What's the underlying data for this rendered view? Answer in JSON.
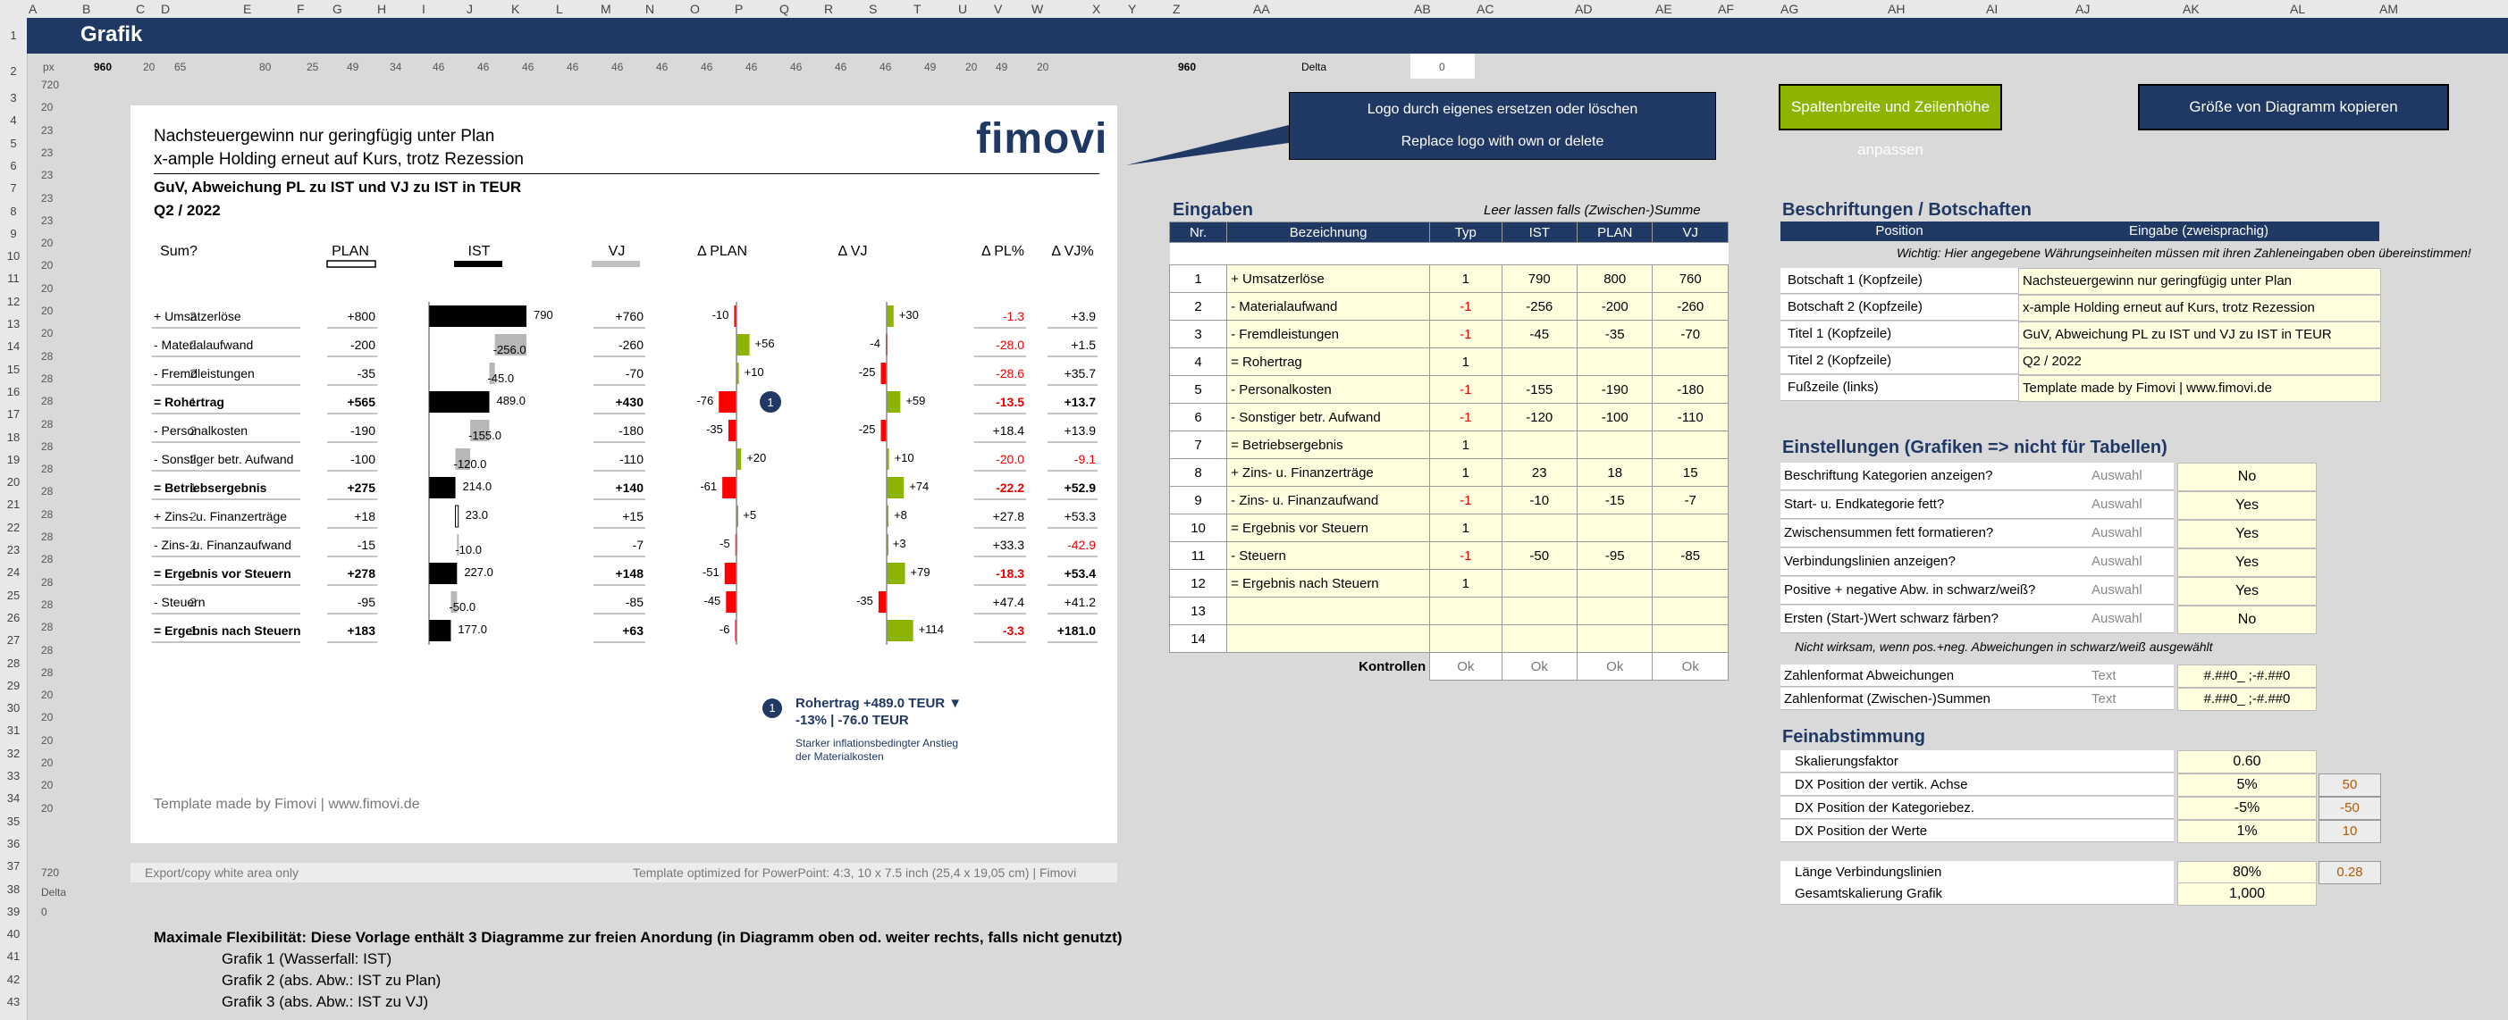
{
  "sheet": {
    "title": "Grafik",
    "columns": [
      "A",
      "B",
      "C",
      "D",
      "E",
      "F",
      "G",
      "H",
      "I",
      "J",
      "K",
      "L",
      "M",
      "N",
      "O",
      "P",
      "Q",
      "R",
      "S",
      "T",
      "U",
      "V",
      "W",
      "X",
      "Y",
      "Z",
      "AA",
      "AB",
      "AC",
      "AD",
      "AE",
      "AF",
      "AG",
      "AH",
      "AI",
      "AJ",
      "AK",
      "AL",
      "AM"
    ],
    "rows": [
      "1",
      "2",
      "3",
      "4",
      "5",
      "6",
      "7",
      "8",
      "9",
      "10",
      "11",
      "12",
      "13",
      "14",
      "15",
      "16",
      "17",
      "18",
      "19",
      "20",
      "21",
      "22",
      "23",
      "24",
      "25",
      "26",
      "27",
      "28",
      "29",
      "30",
      "31",
      "32",
      "33",
      "34",
      "35",
      "36",
      "37",
      "38",
      "39",
      "40",
      "41",
      "42",
      "43"
    ],
    "row2": {
      "px_label": "px",
      "px_value": "960",
      "widths": [
        "20",
        "65",
        "80",
        "25",
        "49",
        "34",
        "46",
        "46",
        "46",
        "46",
        "46",
        "46",
        "46",
        "46",
        "46",
        "46",
        "46",
        "49",
        "20",
        "49",
        "20"
      ],
      "z_value": "960",
      "delta_label": "Delta",
      "delta_value": "0"
    },
    "row_small_numbers": {
      "r3": "720",
      "r4": "20",
      "r5": "23",
      "r6": "23",
      "r7": "23",
      "r8": "23",
      "r9": "23",
      "r10": "20",
      "r11": "20",
      "r12": "20",
      "r13": "20",
      "r14": "20",
      "r15": "28",
      "r16": "28",
      "r17": "28",
      "r18": "28",
      "r19": "28",
      "r20": "28",
      "r21": "28",
      "r22": "28",
      "r23": "28",
      "r24": "28",
      "r25": "28",
      "r26": "28",
      "r27": "28",
      "r28": "28",
      "r29": "28",
      "r30": "20",
      "r31": "20",
      "r32": "20",
      "r33": "20",
      "r34": "20",
      "r35": "20",
      "r37": "720",
      "r38": "Delta",
      "r39": "0"
    }
  },
  "chart": {
    "headline1": "Nachsteuergewinn nur geringfügig unter Plan",
    "headline2": "x-ample Holding erneut auf Kurs, trotz Rezession",
    "logo": "fimovi",
    "title1": "GuV, Abweichung PL zu IST und VJ zu IST in TEUR",
    "title2": "Q2 / 2022",
    "col_headers": {
      "plan": "PLAN",
      "ist": "IST",
      "vj": "VJ",
      "dplan": "Δ PLAN",
      "dvj": "Δ VJ",
      "dplpct": "Δ PL%",
      "dvjpct": "Δ VJ%",
      "sum": "Sum?"
    },
    "footer": "Template made by Fimovi  |  www.fimovi.de",
    "annotation_badge": "1",
    "annotation_title": "Rohertrag +489.0 TEUR ▼",
    "annotation_sub": "-13% | -76.0 TEUR",
    "annotation_text1": "Starker inflationsbedingter Anstieg",
    "annotation_text2": "der Materialkosten",
    "export_note": "Export/copy white area only",
    "template_note": "Template optimized for PowerPoint: 4:3, 10 x 7.5 inch (25,4 x 19,05 cm)  |  Fimovi"
  },
  "chart_data": {
    "type": "table",
    "categories": [
      "+ Umsatzerlöse",
      "- Materialaufwand",
      "- Fremdleistungen",
      "= Rohertrag",
      "- Personalkosten",
      "- Sonstiger betr. Aufwand",
      "= Betriebsergebnis",
      "+ Zins- u. Finanzerträge",
      "- Zins- u. Finanzaufwand",
      "= Ergebnis vor Steuern",
      "- Steuern",
      "= Ergebnis nach Steuern"
    ],
    "sum_flags": [
      "2",
      "2",
      "2",
      "1",
      "2",
      "2",
      "1",
      "2",
      "2",
      "1",
      "2",
      "1"
    ],
    "plan": [
      "+800",
      "-200",
      "-35",
      "+565",
      "-190",
      "-100",
      "+275",
      "+18",
      "-15",
      "+278",
      "-95",
      "+183"
    ],
    "ist_values": [
      790,
      -256,
      -45,
      489,
      -155,
      -120,
      214,
      23,
      -10,
      227,
      -50,
      177
    ],
    "ist_labels": [
      "790",
      "-256.0",
      "-45.0",
      "489.0",
      "-155.0",
      "-120.0",
      "214.0",
      "23.0",
      "-10.0",
      "227.0",
      "-50.0",
      "177.0"
    ],
    "vj": [
      "+760",
      "-260",
      "-70",
      "+430",
      "-180",
      "-110",
      "+140",
      "+15",
      "-7",
      "+148",
      "-85",
      "+63"
    ],
    "dplan_values": [
      -10,
      56,
      10,
      -76,
      -35,
      20,
      -61,
      5,
      -5,
      -51,
      -45,
      -6
    ],
    "dplan_labels": [
      "-10",
      "+56",
      "+10",
      "-76",
      "-35",
      "+20",
      "-61",
      "+5",
      "-5",
      "-51",
      "-45",
      "-6"
    ],
    "dvj_values": [
      30,
      -4,
      -25,
      59,
      -25,
      10,
      74,
      8,
      3,
      79,
      -35,
      114
    ],
    "dvj_labels": [
      "+30",
      "-4",
      "-25",
      "+59",
      "-25",
      "+10",
      "+74",
      "+8",
      "+3",
      "+79",
      "-35",
      "+114"
    ],
    "dplpct": [
      "-1.3",
      "-28.0",
      "-28.6",
      "-13.5",
      "+18.4",
      "-20.0",
      "-22.2",
      "+27.8",
      "+33.3",
      "-18.3",
      "+47.4",
      "-3.3"
    ],
    "dvjpct": [
      "+3.9",
      "+1.5",
      "+35.7",
      "+13.7",
      "+13.9",
      "-9.1",
      "+52.9",
      "+53.3",
      "-42.9",
      "+53.4",
      "+41.2",
      "+181.0"
    ],
    "bold_rows": [
      3,
      6,
      9,
      11
    ],
    "colors": {
      "ist": "#000000",
      "ist_neg": "#b7b7b7",
      "pos": "#8db400",
      "neg": "#ff0000",
      "vj": "#c0c0c0"
    }
  },
  "callout": {
    "line1": "Logo durch eigenes ersetzen oder löschen",
    "line2": "Replace logo with own or delete"
  },
  "buttons": {
    "adjust": "Spaltenbreite und Zeilenhöhe anpassen",
    "copy": "Größe von Diagramm kopieren"
  },
  "inputs": {
    "title": "Eingaben",
    "note": "Leer lassen falls (Zwischen-)Summe",
    "headers": [
      "Nr.",
      "Bezeichnung",
      "Typ",
      "IST",
      "PLAN",
      "VJ"
    ],
    "rows": [
      [
        "1",
        "+ Umsatzerlöse",
        "1",
        "790",
        "800",
        "760"
      ],
      [
        "2",
        "- Materialaufwand",
        "-1",
        "-256",
        "-200",
        "-260"
      ],
      [
        "3",
        "- Fremdleistungen",
        "-1",
        "-45",
        "-35",
        "-70"
      ],
      [
        "4",
        "= Rohertrag",
        "1",
        "",
        "",
        ""
      ],
      [
        "5",
        "- Personalkosten",
        "-1",
        "-155",
        "-190",
        "-180"
      ],
      [
        "6",
        "- Sonstiger betr. Aufwand",
        "-1",
        "-120",
        "-100",
        "-110"
      ],
      [
        "7",
        "= Betriebsergebnis",
        "1",
        "",
        "",
        ""
      ],
      [
        "8",
        "+ Zins- u. Finanzerträge",
        "1",
        "23",
        "18",
        "15"
      ],
      [
        "9",
        "- Zins- u. Finanzaufwand",
        "-1",
        "-10",
        "-15",
        "-7"
      ],
      [
        "10",
        "= Ergebnis vor Steuern",
        "1",
        "",
        "",
        ""
      ],
      [
        "11",
        "- Steuern",
        "-1",
        "-50",
        "-95",
        "-85"
      ],
      [
        "12",
        "= Ergebnis nach Steuern",
        "1",
        "",
        "",
        ""
      ],
      [
        "13",
        "",
        "",
        "",
        "",
        ""
      ],
      [
        "14",
        "",
        "",
        "",
        "",
        ""
      ]
    ],
    "controls_label": "Kontrollen",
    "controls": [
      "Ok",
      "Ok",
      "Ok",
      "Ok"
    ]
  },
  "labels": {
    "title": "Beschriftungen / Botschaften",
    "headers": [
      "Position",
      "Eingabe (zweisprachig)"
    ],
    "note": "Wichtig: Hier angegebene Währungseinheiten müssen mit ihren Zahleneingaben oben übereinstimmen!",
    "rows": [
      [
        "Botschaft 1 (Kopfzeile)",
        "Nachsteuergewinn nur geringfügig unter Plan"
      ],
      [
        "Botschaft 2 (Kopfzeile)",
        "x-ample Holding erneut auf Kurs, trotz Rezession"
      ],
      [
        "Titel 1 (Kopfzeile)",
        "GuV, Abweichung PL zu IST und VJ zu IST in TEUR"
      ],
      [
        "Titel 2 (Kopfzeile)",
        "Q2 / 2022"
      ],
      [
        "Fußzeile (links)",
        "Template made by Fimovi  |  www.fimovi.de"
      ]
    ]
  },
  "settings": {
    "title": "Einstellungen (Grafiken => nicht für Tabellen)",
    "rows": [
      [
        "Beschriftung Kategorien anzeigen?",
        "Auswahl",
        "No"
      ],
      [
        "Start- u. Endkategorie fett?",
        "Auswahl",
        "Yes"
      ],
      [
        "Zwischensummen fett formatieren?",
        "Auswahl",
        "Yes"
      ],
      [
        "Verbindungslinien anzeigen?",
        "Auswahl",
        "Yes"
      ],
      [
        "Positive + negative Abw. in schwarz/weiß?",
        "Auswahl",
        "Yes"
      ],
      [
        "Ersten (Start-)Wert schwarz färben?",
        "Auswahl",
        "No"
      ]
    ],
    "note": "Nicht wirksam, wenn pos.+neg. Abweichungen in schwarz/weiß ausgewählt",
    "formats": [
      [
        "Zahlenformat Abweichungen",
        "Text",
        "#.##0_ ;-#.##0"
      ],
      [
        "Zahlenformat (Zwischen-)Summen",
        "Text",
        "#.##0_ ;-#.##0"
      ]
    ]
  },
  "tuning": {
    "title": "Feinabstimmung",
    "rows": [
      [
        "Skalierungsfaktor",
        "0.60",
        ""
      ],
      [
        "DX Position der vertik. Achse",
        "5%",
        "50"
      ],
      [
        "DX Position der Kategoriebez.",
        "-5%",
        "-50"
      ],
      [
        "DX Position der Werte",
        "1%",
        "10"
      ]
    ],
    "rows2": [
      [
        "Länge Verbindungslinien",
        "80%",
        "0.28"
      ],
      [
        "Gesamtskalierung Grafik",
        "1,000",
        ""
      ]
    ]
  },
  "bottom": {
    "headline": "Maximale Flexibilität: Diese Vorlage enthält 3 Diagramme zur freien Anordung (in Diagramm oben od. weiter rechts, falls nicht genutzt)",
    "items": [
      "Grafik 1 (Wasserfall: IST)",
      "Grafik 2 (abs. Abw.: IST zu Plan)",
      "Grafik 3 (abs. Abw.: IST zu VJ)"
    ]
  }
}
